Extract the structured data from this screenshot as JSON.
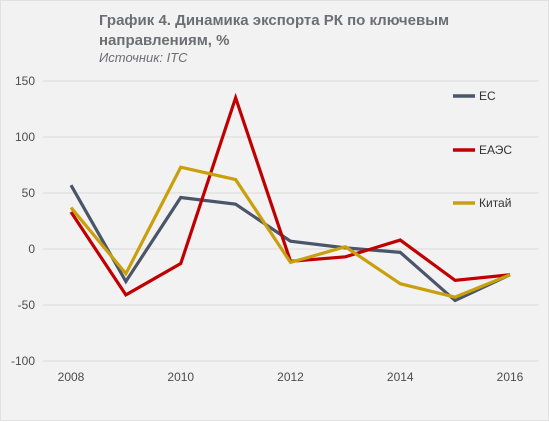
{
  "header": {
    "title": "График 4. Динамика экспорта РК по ключевым направлениям, %",
    "subtitle": "Источник: ITC"
  },
  "chart_data": {
    "type": "line",
    "title": "График 4. Динамика экспорта РК по ключевым направлениям, %",
    "subtitle": "Источник: ITC",
    "x": [
      2008,
      2009,
      2010,
      2011,
      2012,
      2013,
      2014,
      2015,
      2016
    ],
    "xticks": [
      2008,
      2010,
      2012,
      2014,
      2016
    ],
    "yticks": [
      -100,
      -50,
      0,
      50,
      100,
      150
    ],
    "ylim": [
      -100,
      150
    ],
    "xlim": [
      2007.5,
      2016.5
    ],
    "grid": "horizontal",
    "legend_position": "right",
    "series": [
      {
        "name": "ЕС",
        "color": "#4a5569",
        "values": [
          57,
          -29,
          46,
          40,
          7,
          1,
          -3,
          -46,
          -23
        ]
      },
      {
        "name": "ЕАЭС",
        "color": "#c00000",
        "values": [
          33,
          -41,
          -13,
          135,
          -11,
          -7,
          8,
          -28,
          -23
        ]
      },
      {
        "name": "Китай",
        "color": "#c9a00c",
        "values": [
          37,
          -22,
          73,
          62,
          -12,
          2,
          -31,
          -43,
          -23
        ]
      }
    ]
  }
}
